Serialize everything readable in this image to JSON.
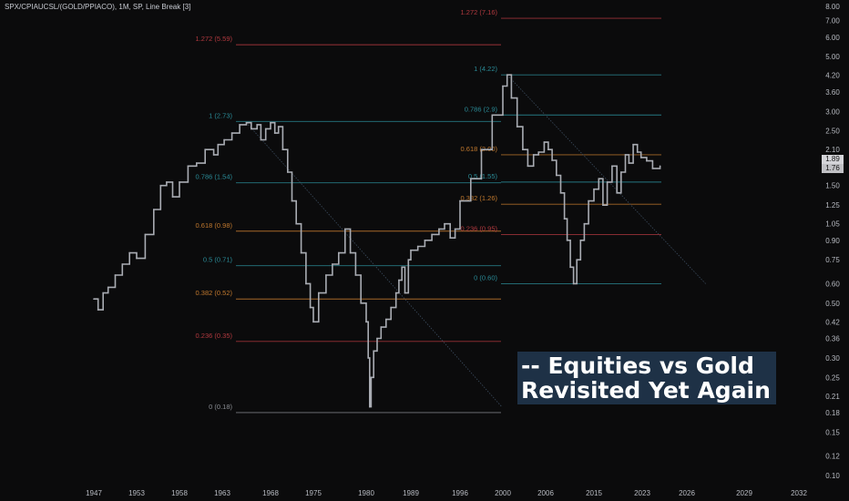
{
  "header": {
    "title": "SPX/CPIAUCSL/(GOLD/PPIACO), 1M, SP, Line Break [3]"
  },
  "banner": {
    "line1": "-- Equities vs Gold",
    "line2": "Revisited Yet Again"
  },
  "colors": {
    "background": "#0b0b0c",
    "price": "#a9acb3",
    "fib_teal": "#2a8a96",
    "fib_orange": "#c0782e",
    "fib_red": "#b2393f",
    "fib_gray": "#8a8d93",
    "banner_bg": "#1e3146"
  },
  "last_values": [
    "1.89",
    "1.76"
  ],
  "chart_data": {
    "type": "line",
    "y_scale": "log",
    "ylim": [
      0.095,
      8.6
    ],
    "y_ticks": [
      "0.10",
      "0.12",
      "0.15",
      "0.18",
      "0.21",
      "0.25",
      "0.30",
      "0.36",
      "0.42",
      "0.50",
      "0.60",
      "0.75",
      "0.90",
      "1.05",
      "1.25",
      "1.50",
      "1.76",
      "2.10",
      "2.50",
      "3.00",
      "3.60",
      "4.20",
      "5.00",
      "6.00",
      "7.00",
      "8.00"
    ],
    "y_tick_values": [
      0.1,
      0.12,
      0.15,
      0.18,
      0.21,
      0.25,
      0.3,
      0.36,
      0.42,
      0.5,
      0.6,
      0.75,
      0.9,
      1.05,
      1.25,
      1.5,
      1.76,
      2.1,
      2.5,
      3.0,
      3.6,
      4.2,
      5.0,
      6.0,
      7.0,
      8.0
    ],
    "x_ticks": [
      "1947",
      "1953",
      "1958",
      "1963",
      "1968",
      "1975",
      "1980",
      "1989",
      "1996",
      "2000",
      "2006",
      "2015",
      "2023",
      "2026",
      "2029",
      "2032"
    ],
    "series": [
      {
        "points": [
          [
            1947.0,
            0.52
          ],
          [
            1947.6,
            0.47
          ],
          [
            1948.3,
            0.55
          ],
          [
            1949.0,
            0.58
          ],
          [
            1950.0,
            0.65
          ],
          [
            1951.0,
            0.72
          ],
          [
            1952.0,
            0.8
          ],
          [
            1953.0,
            0.76
          ],
          [
            1954.0,
            0.95
          ],
          [
            1955.0,
            1.2
          ],
          [
            1955.8,
            1.5
          ],
          [
            1956.5,
            1.55
          ],
          [
            1957.2,
            1.35
          ],
          [
            1958.0,
            1.55
          ],
          [
            1959.0,
            1.8
          ],
          [
            1960.0,
            1.85
          ],
          [
            1961.0,
            2.1
          ],
          [
            1962.0,
            2.0
          ],
          [
            1962.5,
            2.2
          ],
          [
            1963.2,
            2.3
          ],
          [
            1964.0,
            2.45
          ],
          [
            1964.8,
            2.65
          ],
          [
            1965.5,
            2.7
          ],
          [
            1966.0,
            2.55
          ],
          [
            1966.6,
            2.65
          ],
          [
            1967.0,
            2.3
          ],
          [
            1967.5,
            2.55
          ],
          [
            1968.0,
            2.7
          ],
          [
            1968.7,
            2.45
          ],
          [
            1969.3,
            2.6
          ],
          [
            1970.0,
            2.1
          ],
          [
            1970.8,
            1.7
          ],
          [
            1971.5,
            1.3
          ],
          [
            1972.2,
            1.05
          ],
          [
            1973.0,
            0.8
          ],
          [
            1973.8,
            0.6
          ],
          [
            1974.5,
            0.48
          ],
          [
            1975.0,
            0.42
          ],
          [
            1975.5,
            0.55
          ],
          [
            1976.2,
            0.65
          ],
          [
            1976.8,
            0.72
          ],
          [
            1977.4,
            0.8
          ],
          [
            1978.0,
            1.0
          ],
          [
            1978.5,
            0.8
          ],
          [
            1979.0,
            0.65
          ],
          [
            1979.5,
            0.5
          ],
          [
            1980.0,
            0.42
          ],
          [
            1980.4,
            0.3
          ],
          [
            1980.7,
            0.19
          ],
          [
            1981.0,
            0.25
          ],
          [
            1981.5,
            0.32
          ],
          [
            1982.2,
            0.36
          ],
          [
            1983.0,
            0.4
          ],
          [
            1984.0,
            0.43
          ],
          [
            1985.0,
            0.48
          ],
          [
            1986.0,
            0.55
          ],
          [
            1986.6,
            0.62
          ],
          [
            1987.2,
            0.7
          ],
          [
            1987.8,
            0.55
          ],
          [
            1988.5,
            0.75
          ],
          [
            1989.0,
            0.82
          ],
          [
            1990.0,
            0.85
          ],
          [
            1991.0,
            0.9
          ],
          [
            1992.0,
            0.95
          ],
          [
            1993.0,
            1.0
          ],
          [
            1993.8,
            1.05
          ],
          [
            1994.6,
            0.92
          ],
          [
            1995.3,
            1.0
          ],
          [
            1996.0,
            1.3
          ],
          [
            1997.0,
            1.6
          ],
          [
            1998.0,
            2.1
          ],
          [
            1999.0,
            2.9
          ],
          [
            2000.0,
            3.8
          ],
          [
            2000.6,
            4.22
          ],
          [
            2001.2,
            3.4
          ],
          [
            2002.0,
            2.6
          ],
          [
            2002.8,
            2.1
          ],
          [
            2003.5,
            1.8
          ],
          [
            2004.3,
            2.0
          ],
          [
            2005.0,
            2.05
          ],
          [
            2005.8,
            2.25
          ],
          [
            2006.5,
            2.1
          ],
          [
            2007.2,
            1.9
          ],
          [
            2008.0,
            1.65
          ],
          [
            2008.8,
            1.4
          ],
          [
            2009.5,
            1.1
          ],
          [
            2010.0,
            0.9
          ],
          [
            2010.6,
            0.7
          ],
          [
            2011.2,
            0.6
          ],
          [
            2011.8,
            0.75
          ],
          [
            2012.5,
            0.9
          ],
          [
            2013.2,
            1.05
          ],
          [
            2014.0,
            1.3
          ],
          [
            2015.0,
            1.45
          ],
          [
            2015.8,
            1.6
          ],
          [
            2016.5,
            1.25
          ],
          [
            2017.2,
            1.55
          ],
          [
            2018.0,
            1.8
          ],
          [
            2018.8,
            1.4
          ],
          [
            2019.5,
            1.7
          ],
          [
            2020.2,
            2.0
          ],
          [
            2020.8,
            1.85
          ],
          [
            2021.5,
            2.2
          ],
          [
            2022.2,
            2.05
          ],
          [
            2022.8,
            1.95
          ],
          [
            2023.3,
            1.89
          ],
          [
            2023.7,
            1.76
          ],
          [
            2024.2,
            1.8
          ]
        ]
      }
    ],
    "trendlines": [
      {
        "from": [
          1965.5,
          2.7
        ],
        "to": [
          1980.7,
          0.19
        ]
      },
      {
        "from": [
          2000.6,
          4.22
        ],
        "to": [
          2011.2,
          0.6
        ]
      }
    ],
    "fib_levels_left": [
      {
        "label": "1.272 (5.59)",
        "value": 5.59,
        "color": "#b2393f"
      },
      {
        "label": "1 (2.73)",
        "value": 2.73,
        "color": "#2a8a96"
      },
      {
        "label": "0.786 (1.54)",
        "value": 1.54,
        "color": "#2a8a96"
      },
      {
        "label": "0.618 (0.98)",
        "value": 0.98,
        "color": "#c0782e"
      },
      {
        "label": "0.5 (0.71)",
        "value": 0.71,
        "color": "#2a8a96"
      },
      {
        "label": "0.382 (0.52)",
        "value": 0.52,
        "color": "#c0782e"
      },
      {
        "label": "0.236 (0.35)",
        "value": 0.35,
        "color": "#b2393f"
      },
      {
        "label": "0 (0.18)",
        "value": 0.18,
        "color": "#8a8d93"
      }
    ],
    "fib_levels_right": [
      {
        "label": "1.272 (7.16)",
        "value": 7.16,
        "color": "#b2393f"
      },
      {
        "label": "1 (4.22)",
        "value": 4.22,
        "color": "#2a8a96"
      },
      {
        "label": "0.786 (2.9)",
        "value": 2.9,
        "color": "#2a8a96"
      },
      {
        "label": "0.618 (2.00)",
        "value": 2.0,
        "color": "#c0782e"
      },
      {
        "label": "0.5 (1.55)",
        "value": 1.55,
        "color": "#2a8a96"
      },
      {
        "label": "0.382 (1.26)",
        "value": 1.26,
        "color": "#c0782e"
      },
      {
        "label": "0.236 (0.95)",
        "value": 0.95,
        "color": "#b2393f"
      },
      {
        "label": "0 (0.60)",
        "value": 0.6,
        "color": "#2a8a96"
      }
    ]
  }
}
